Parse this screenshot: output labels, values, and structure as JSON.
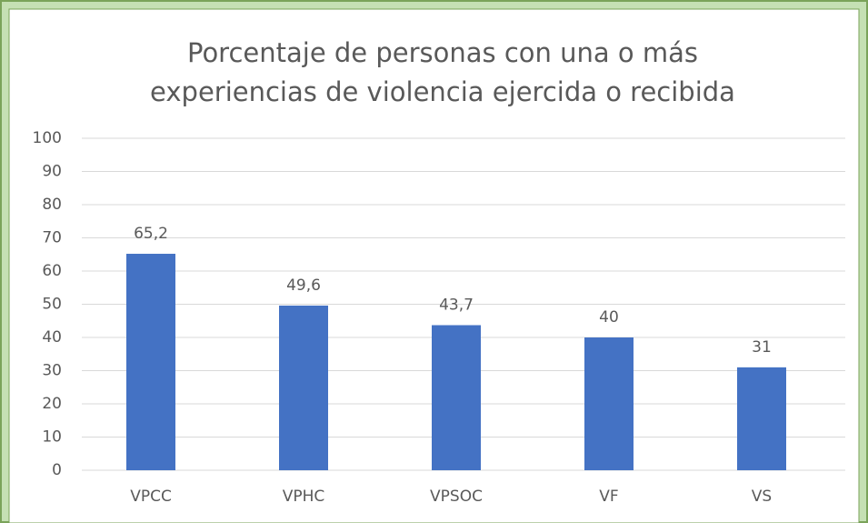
{
  "chart_data": {
    "type": "bar",
    "title": [
      "Porcentaje de personas con una o más",
      "experiencias de violencia ejercida o recibida"
    ],
    "categories": [
      "VPCC",
      "VPHC",
      "VPSOC",
      "VF",
      "VS"
    ],
    "values": [
      65.2,
      49.6,
      43.7,
      40,
      31
    ],
    "value_labels": [
      "65,2",
      "49,6",
      "43,7",
      "40",
      "31"
    ],
    "color": "#4472c4",
    "ylim": [
      0,
      100
    ],
    "yticks": [
      0,
      10,
      20,
      30,
      40,
      50,
      60,
      70,
      80,
      90,
      100
    ],
    "grid": true
  }
}
